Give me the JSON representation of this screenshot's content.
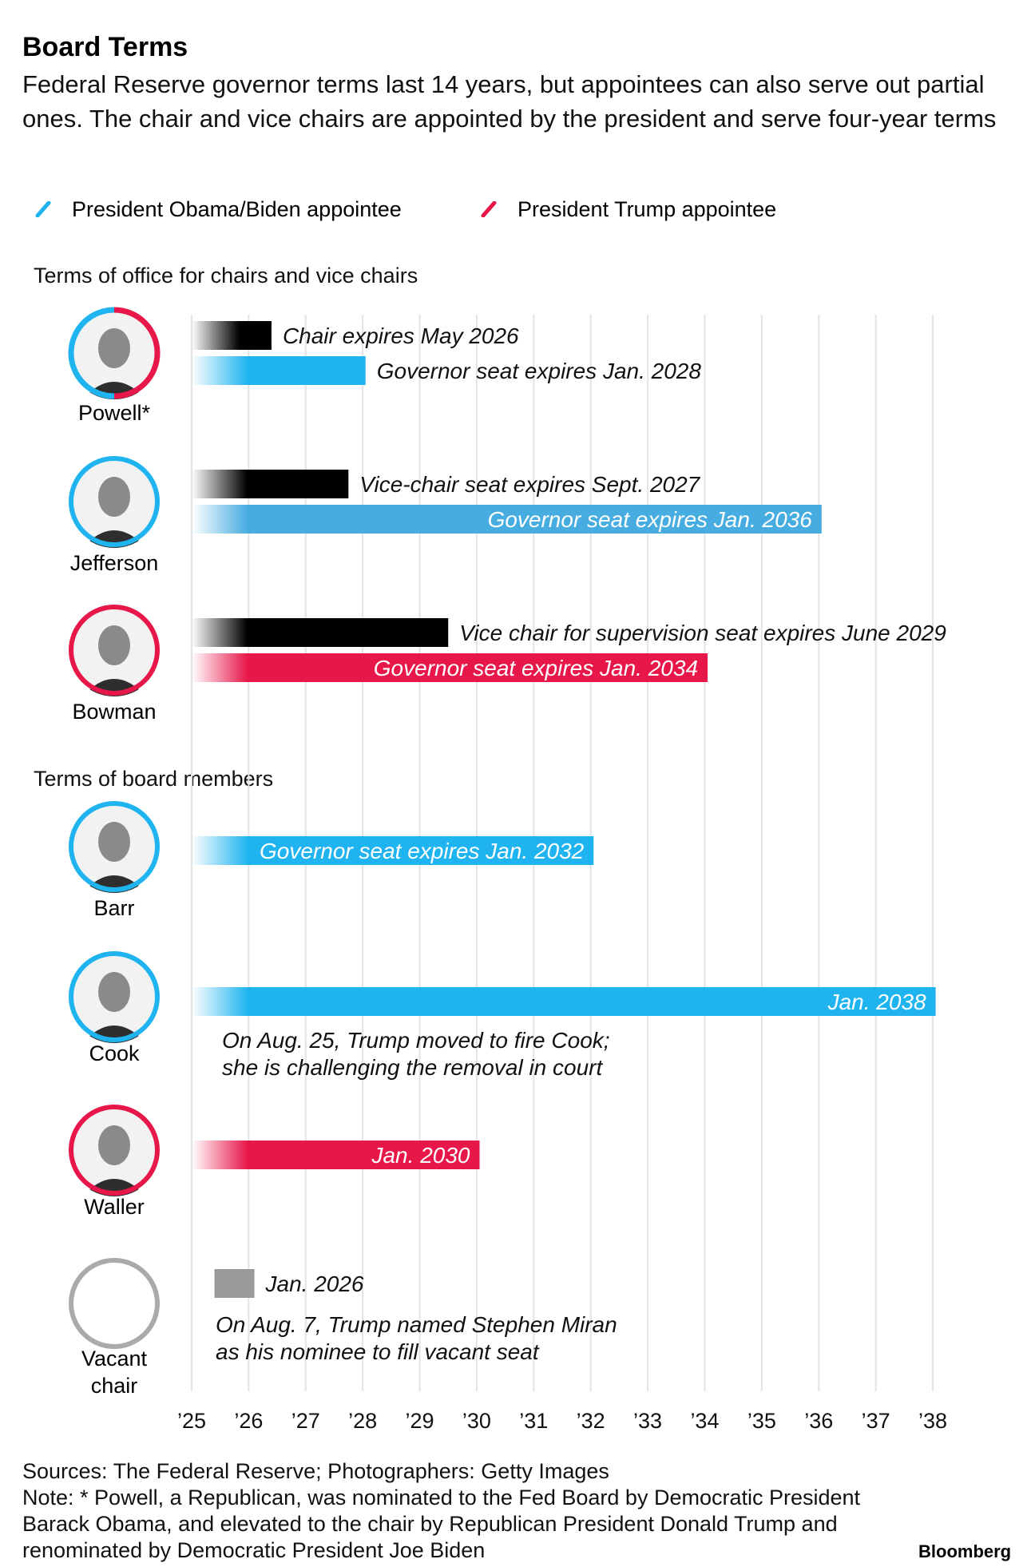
{
  "title": "Board Terms",
  "subtitle": "Federal Reserve governor terms last 14 years, but appointees can also serve out partial ones. The chair and vice chairs are appointed by the president and serve four-year terms",
  "legend": [
    {
      "label": "President Obama/Biden appointee",
      "color": "#1fb4f0"
    },
    {
      "label": "President Trump appointee",
      "color": "#e8174a"
    }
  ],
  "sections": {
    "chairs": "Terms of office for chairs and vice chairs",
    "members": "Terms of board members"
  },
  "people": [
    {
      "name": "Powell*",
      "ring": "split",
      "icon": "person-photo-icon"
    },
    {
      "name": "Jefferson",
      "ring": "#1fb4f0",
      "icon": "person-photo-icon"
    },
    {
      "name": "Bowman",
      "ring": "#e8174a",
      "icon": "person-photo-icon"
    },
    {
      "name": "Barr",
      "ring": "#1fb4f0",
      "icon": "person-photo-icon"
    },
    {
      "name": "Cook",
      "ring": "#1fb4f0",
      "icon": "person-photo-icon"
    },
    {
      "name": "Waller",
      "ring": "#e8174a",
      "icon": "person-photo-icon"
    },
    {
      "name": "Vacant\nchair",
      "ring": "#aaaaaa",
      "icon": "empty-seat-icon"
    }
  ],
  "chart_data": {
    "type": "bar",
    "subtype": "timeline",
    "x_axis": {
      "range": [
        2025,
        2038
      ],
      "ticks": [
        {
          "value": 2025,
          "label": "’25"
        },
        {
          "value": 2026,
          "label": "’26"
        },
        {
          "value": 2027,
          "label": "’27"
        },
        {
          "value": 2028,
          "label": "’28"
        },
        {
          "value": 2029,
          "label": "’29"
        },
        {
          "value": 2030,
          "label": "’30"
        },
        {
          "value": 2031,
          "label": "’31"
        },
        {
          "value": 2032,
          "label": "’32"
        },
        {
          "value": 2033,
          "label": "’33"
        },
        {
          "value": 2034,
          "label": "’34"
        },
        {
          "value": 2035,
          "label": "’35"
        },
        {
          "value": 2036,
          "label": "’36"
        },
        {
          "value": 2037,
          "label": "’37"
        },
        {
          "value": 2038,
          "label": "’38"
        }
      ],
      "grid": true
    },
    "colors": {
      "obama_biden": "#1fb4f0",
      "jefferson": "#47ade0",
      "trump": "#e8174a",
      "chair_seat": "#000000",
      "vacant": "#999999"
    },
    "bars": [
      {
        "person": "Powell",
        "role": "chair",
        "start": 2025,
        "end": 2026.4,
        "color": "#000000",
        "label": "Chair expires May 2026",
        "label_pos": "outside"
      },
      {
        "person": "Powell",
        "role": "governor",
        "start": 2025,
        "end": 2028.05,
        "color": "#1fb4f0",
        "label": "Governor seat expires Jan. 2028",
        "label_pos": "outside"
      },
      {
        "person": "Jefferson",
        "role": "vice-chair",
        "start": 2025,
        "end": 2027.75,
        "color": "#000000",
        "label": "Vice-chair seat expires Sept. 2027",
        "label_pos": "outside"
      },
      {
        "person": "Jefferson",
        "role": "governor",
        "start": 2025,
        "end": 2036.05,
        "color": "#47ade0",
        "label": "Governor seat expires Jan. 2036",
        "label_pos": "inside"
      },
      {
        "person": "Bowman",
        "role": "vice-chair-supervision",
        "start": 2025,
        "end": 2029.5,
        "color": "#000000",
        "label": "Vice chair for supervision seat expires June 2029",
        "label_pos": "outside"
      },
      {
        "person": "Bowman",
        "role": "governor",
        "start": 2025,
        "end": 2034.05,
        "color": "#e8174a",
        "label": "Governor seat expires Jan. 2034",
        "label_pos": "inside"
      },
      {
        "person": "Barr",
        "role": "governor",
        "start": 2025,
        "end": 2032.05,
        "color": "#1fb4f0",
        "label": "Governor seat expires Jan. 2032",
        "label_pos": "inside"
      },
      {
        "person": "Cook",
        "role": "governor",
        "start": 2025,
        "end": 2038.05,
        "color": "#1fb4f0",
        "label": "Jan. 2038",
        "label_pos": "inside"
      },
      {
        "person": "Waller",
        "role": "governor",
        "start": 2025,
        "end": 2030.05,
        "color": "#e8174a",
        "label": "Jan. 2030",
        "label_pos": "inside"
      },
      {
        "person": "Vacant chair",
        "role": "governor",
        "start": 2025.4,
        "end": 2026.1,
        "color": "#999999",
        "label": "Jan. 2026",
        "label_pos": "outside"
      }
    ],
    "annotations": [
      {
        "person": "Cook",
        "lines": [
          "On Aug. 25, Trump moved to fire Cook;",
          "she is challenging the removal in court"
        ]
      },
      {
        "person": "Vacant chair",
        "lines": [
          "On Aug. 7, Trump named Stephen Miran",
          "as his nominee to fill vacant seat"
        ]
      }
    ]
  },
  "footer": {
    "sources": "Sources: The Federal Reserve; Photographers: Getty Images",
    "note": "Note: * Powell, a Republican, was nominated to the Fed Board by Democratic President Barack Obama, and elevated to the chair by Republican President Donald Trump and renominated by Democratic President Joe Biden",
    "brand": "Bloomberg"
  }
}
